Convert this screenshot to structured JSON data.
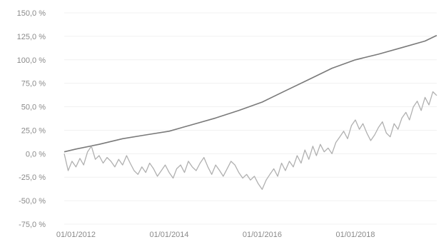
{
  "chart_data": {
    "type": "line",
    "title": "",
    "xlabel": "",
    "ylabel": "",
    "ylim": [
      -75,
      150
    ],
    "y_ticks": [
      150,
      125,
      100,
      75,
      50,
      25,
      0,
      -25,
      -50,
      -75
    ],
    "y_tick_labels": [
      "150,0 %",
      "125,0 %",
      "100,0 %",
      "75,0 %",
      "50,0 %",
      "25,0 %",
      "0,0 %",
      "-25,0 %",
      "-50,0 %",
      "-75,0 %"
    ],
    "xlim": [
      "2011-10-01",
      "2019-10-01"
    ],
    "x_ticks": [
      "2012-01-01",
      "2014-01-01",
      "2016-01-01",
      "2018-01-01"
    ],
    "x_tick_labels": [
      "01/01/2012",
      "01/01/2014",
      "01/01/2016",
      "01/01/2018"
    ],
    "grid": true,
    "legend": "none",
    "series": [
      {
        "color": "#7a7a7a",
        "x": [
          "2011-10-01",
          "2012-01-01",
          "2012-07-01",
          "2013-01-01",
          "2013-07-01",
          "2014-01-01",
          "2014-07-01",
          "2015-01-01",
          "2015-07-01",
          "2016-01-01",
          "2016-07-01",
          "2017-01-01",
          "2017-07-01",
          "2018-01-01",
          "2018-07-01",
          "2019-01-01",
          "2019-07-01",
          "2019-10-01"
        ],
        "values": [
          2,
          5,
          10,
          16,
          20,
          24,
          31,
          38,
          46,
          55,
          67,
          79,
          91,
          100,
          106,
          113,
          120,
          126
        ]
      },
      {
        "color": "#b0b0b0",
        "x": [
          "2011-10-01",
          "2011-11-01",
          "2011-12-01",
          "2012-01-01",
          "2012-02-01",
          "2012-03-01",
          "2012-04-01",
          "2012-05-01",
          "2012-06-01",
          "2012-07-01",
          "2012-08-01",
          "2012-09-01",
          "2012-10-01",
          "2012-11-01",
          "2012-12-01",
          "2013-01-01",
          "2013-02-01",
          "2013-03-01",
          "2013-04-01",
          "2013-05-01",
          "2013-06-01",
          "2013-07-01",
          "2013-08-01",
          "2013-09-01",
          "2013-10-01",
          "2013-11-01",
          "2013-12-01",
          "2014-01-01",
          "2014-02-01",
          "2014-03-01",
          "2014-04-01",
          "2014-05-01",
          "2014-06-01",
          "2014-07-01",
          "2014-08-01",
          "2014-09-01",
          "2014-10-01",
          "2014-11-01",
          "2014-12-01",
          "2015-01-01",
          "2015-02-01",
          "2015-03-01",
          "2015-04-01",
          "2015-05-01",
          "2015-06-01",
          "2015-07-01",
          "2015-08-01",
          "2015-09-01",
          "2015-10-01",
          "2015-11-01",
          "2015-12-01",
          "2016-01-01",
          "2016-02-01",
          "2016-03-01",
          "2016-04-01",
          "2016-05-01",
          "2016-06-01",
          "2016-07-01",
          "2016-08-01",
          "2016-09-01",
          "2016-10-01",
          "2016-11-01",
          "2016-12-01",
          "2017-01-01",
          "2017-02-01",
          "2017-03-01",
          "2017-04-01",
          "2017-05-01",
          "2017-06-01",
          "2017-07-01",
          "2017-08-01",
          "2017-09-01",
          "2017-10-01",
          "2017-11-01",
          "2017-12-01",
          "2018-01-01",
          "2018-02-01",
          "2018-03-01",
          "2018-04-01",
          "2018-05-01",
          "2018-06-01",
          "2018-07-01",
          "2018-08-01",
          "2018-09-01",
          "2018-10-01",
          "2018-11-01",
          "2018-12-01",
          "2019-01-01",
          "2019-02-01",
          "2019-03-01",
          "2019-04-01",
          "2019-05-01",
          "2019-06-01",
          "2019-07-01",
          "2019-08-01",
          "2019-09-01",
          "2019-10-01"
        ],
        "values": [
          0,
          -18,
          -8,
          -14,
          -5,
          -12,
          2,
          8,
          -6,
          -2,
          -10,
          -4,
          -8,
          -14,
          -6,
          -12,
          -2,
          -10,
          -18,
          -22,
          -14,
          -20,
          -10,
          -16,
          -24,
          -18,
          -12,
          -20,
          -26,
          -16,
          -12,
          -20,
          -8,
          -14,
          -18,
          -10,
          -4,
          -14,
          -22,
          -12,
          -18,
          -24,
          -16,
          -8,
          -12,
          -20,
          -26,
          -22,
          -28,
          -24,
          -32,
          -38,
          -28,
          -22,
          -16,
          -24,
          -10,
          -18,
          -8,
          -14,
          -2,
          -10,
          4,
          -6,
          8,
          -2,
          10,
          2,
          6,
          0,
          12,
          18,
          24,
          16,
          30,
          36,
          26,
          32,
          22,
          14,
          20,
          28,
          34,
          22,
          18,
          32,
          26,
          38,
          44,
          36,
          50,
          56,
          46,
          60,
          52,
          66,
          62
        ]
      }
    ]
  }
}
